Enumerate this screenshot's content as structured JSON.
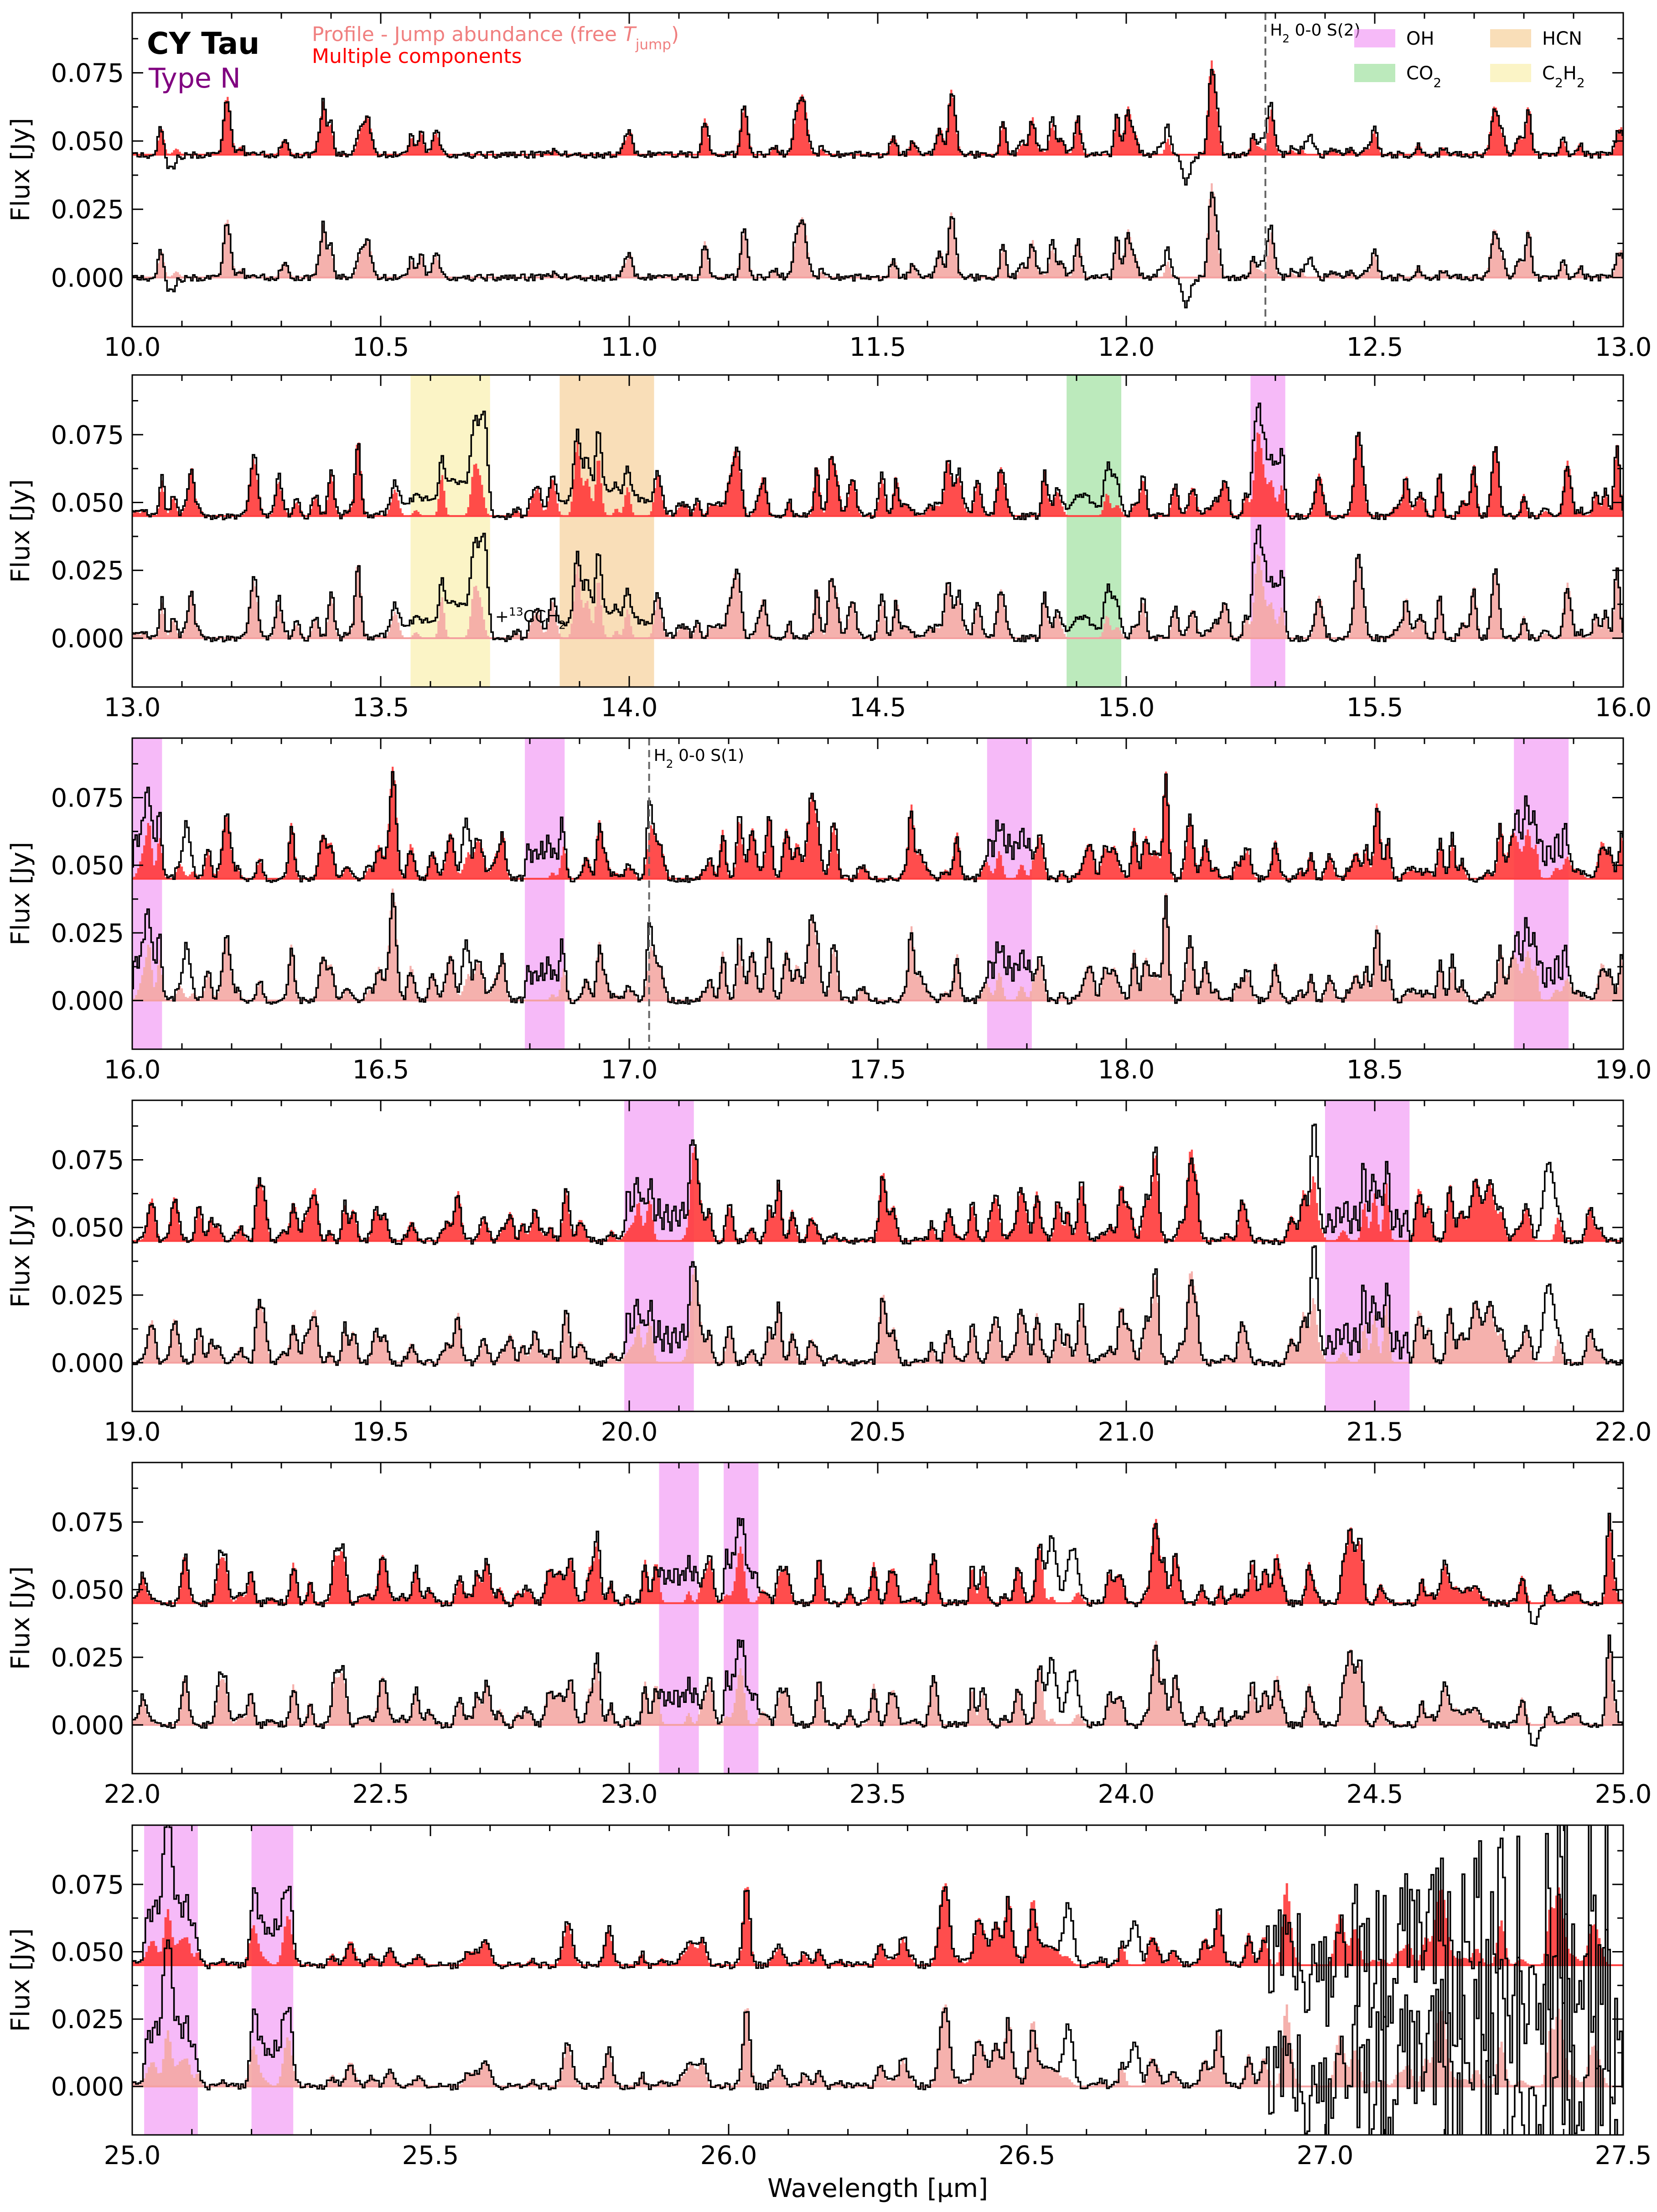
{
  "header": {
    "object_name": "CY Tau",
    "type_label": "Type N",
    "profile_label_prefix": "Profile - Jump abundance (free ",
    "profile_label_symbol": "T",
    "profile_label_subscript": "jump",
    "profile_label_suffix": ")",
    "multi_label": "Multiple components"
  },
  "colors": {
    "observed": "#000000",
    "model_top": "#ff2020",
    "model_top_fill": "#ff3a3a",
    "model_bottom": "#f08080",
    "model_bottom_fill": "#f4a8a4",
    "baseline_top": "#ff4040",
    "baseline_bottom": "#f4a0a0",
    "OH": "#f08cf4",
    "CO2": "#8fdc8f",
    "HCN": "#f5c889",
    "C2H2": "#f8eca0",
    "h2_marker": "#666666",
    "type_text": "#800080",
    "profile_text": "#f08080",
    "multi_text": "#ff0000"
  },
  "legend": {
    "placement": "top-right of first panel",
    "items": [
      {
        "key": "OH",
        "parts": [
          [
            "OH",
            null
          ]
        ]
      },
      {
        "key": "HCN",
        "parts": [
          [
            "HCN",
            null
          ]
        ]
      },
      {
        "key": "CO2",
        "parts": [
          [
            "CO",
            null
          ],
          [
            "2",
            "sub"
          ]
        ]
      },
      {
        "key": "C2H2",
        "parts": [
          [
            "C",
            null
          ],
          [
            "2",
            "sub"
          ],
          [
            "H",
            null
          ],
          [
            "2",
            "sub"
          ]
        ]
      }
    ]
  },
  "chart_data": [
    {
      "type": "line",
      "xlim": [
        10.0,
        13.0
      ],
      "ylim": [
        -0.018,
        0.097
      ],
      "ylabel": "Flux [Jy]",
      "xlabel": "",
      "xticks": [
        "10.0",
        "10.5",
        "11.0",
        "11.5",
        "12.0",
        "12.5",
        "13.0"
      ],
      "yticks": [
        "0.000",
        "0.025",
        "0.050",
        "0.075"
      ],
      "offset_levels": [
        0.045,
        0.0
      ],
      "line_density": 0.35,
      "seed": 11,
      "bands": [],
      "h2_lines": [
        {
          "x": 12.28,
          "text_parts": [
            [
              "H",
              null
            ],
            [
              "2",
              "sub"
            ],
            [
              " 0-0 S(2)",
              null
            ]
          ]
        }
      ],
      "annotations": [],
      "features": [
        {
          "x": 10.08,
          "a": -0.006,
          "w": 0.01
        },
        {
          "x": 12.08,
          "a": 0.004,
          "w": 0.012
        },
        {
          "x": 12.12,
          "a": -0.01,
          "w": 0.008
        },
        {
          "x": 12.28,
          "a": 0.006,
          "w": 0.008
        },
        {
          "x": 12.37,
          "a": 0.007,
          "w": 0.008
        }
      ]
    },
    {
      "type": "line",
      "xlim": [
        13.0,
        16.0
      ],
      "ylim": [
        -0.018,
        0.097
      ],
      "ylabel": "Flux [Jy]",
      "xlabel": "",
      "xticks": [
        "13.0",
        "13.5",
        "14.0",
        "14.5",
        "15.0",
        "15.5",
        "16.0"
      ],
      "yticks": [
        "0.000",
        "0.025",
        "0.050",
        "0.075"
      ],
      "offset_levels": [
        0.045,
        0.0
      ],
      "line_density": 0.8,
      "seed": 13,
      "bands": [
        {
          "species": "C2H2",
          "x0": 13.56,
          "x1": 13.72
        },
        {
          "species": "HCN",
          "x0": 13.86,
          "x1": 14.05
        },
        {
          "species": "CO2",
          "x0": 14.88,
          "x1": 14.99
        },
        {
          "species": "OH",
          "x0": 15.25,
          "x1": 15.32
        }
      ],
      "h2_lines": [],
      "annotations": [
        {
          "x": 13.73,
          "y": 0.006,
          "text_parts": [
            [
              "+",
              null
            ],
            [
              "13",
              "sup"
            ],
            [
              "CCH",
              null
            ],
            [
              "2",
              "sub"
            ]
          ]
        }
      ],
      "features": [
        {
          "x": 13.55,
          "a": 0.003,
          "w": 0.03
        },
        {
          "x": 13.6,
          "a": 0.005,
          "w": 0.03
        },
        {
          "x": 13.65,
          "a": 0.012,
          "w": 0.02
        },
        {
          "x": 13.69,
          "a": 0.016,
          "w": 0.012
        },
        {
          "x": 13.71,
          "a": 0.028,
          "w": 0.006
        },
        {
          "x": 13.88,
          "a": 0.005,
          "w": 0.03
        },
        {
          "x": 13.95,
          "a": 0.009,
          "w": 0.03
        },
        {
          "x": 14.02,
          "a": 0.006,
          "w": 0.03
        },
        {
          "x": 14.91,
          "a": 0.008,
          "w": 0.02
        },
        {
          "x": 14.97,
          "a": 0.012,
          "w": 0.012
        }
      ]
    },
    {
      "type": "line",
      "xlim": [
        16.0,
        19.0
      ],
      "ylim": [
        -0.018,
        0.097
      ],
      "ylabel": "Flux [Jy]",
      "xlabel": "",
      "xticks": [
        "16.0",
        "16.5",
        "17.0",
        "17.5",
        "18.0",
        "18.5",
        "19.0"
      ],
      "yticks": [
        "0.000",
        "0.025",
        "0.050",
        "0.075"
      ],
      "offset_levels": [
        0.045,
        0.0
      ],
      "line_density": 1.0,
      "seed": 17,
      "bands": [
        {
          "species": "OH",
          "x0": 16.0,
          "x1": 16.06
        },
        {
          "species": "OH",
          "x0": 16.79,
          "x1": 16.87
        },
        {
          "species": "OH",
          "x0": 17.72,
          "x1": 17.81
        },
        {
          "species": "OH",
          "x0": 18.78,
          "x1": 18.89
        }
      ],
      "h2_lines": [
        {
          "x": 17.04,
          "text_parts": [
            [
              "H",
              null
            ],
            [
              "2",
              "sub"
            ],
            [
              " 0-0 S(1)",
              null
            ]
          ]
        }
      ],
      "annotations": [],
      "features": [
        {
          "x": 16.11,
          "a": 0.02,
          "w": 0.006
        },
        {
          "x": 16.67,
          "a": 0.014,
          "w": 0.006
        },
        {
          "x": 17.04,
          "a": 0.012,
          "w": 0.005
        }
      ]
    },
    {
      "type": "line",
      "xlim": [
        19.0,
        22.0
      ],
      "ylim": [
        -0.018,
        0.097
      ],
      "ylabel": "Flux [Jy]",
      "xlabel": "",
      "xticks": [
        "19.0",
        "19.5",
        "20.0",
        "20.5",
        "21.0",
        "21.5",
        "22.0"
      ],
      "yticks": [
        "0.000",
        "0.025",
        "0.050",
        "0.075"
      ],
      "offset_levels": [
        0.045,
        0.0
      ],
      "line_density": 0.9,
      "seed": 19,
      "bands": [
        {
          "species": "OH",
          "x0": 19.99,
          "x1": 20.13
        },
        {
          "species": "OH",
          "x0": 21.4,
          "x1": 21.57
        }
      ],
      "h2_lines": [],
      "annotations": [],
      "features": [
        {
          "x": 21.38,
          "a": 0.018,
          "w": 0.008
        },
        {
          "x": 21.85,
          "a": 0.03,
          "w": 0.01
        }
      ]
    },
    {
      "type": "line",
      "xlim": [
        22.0,
        25.0
      ],
      "ylim": [
        -0.018,
        0.097
      ],
      "ylabel": "Flux [Jy]",
      "xlabel": "",
      "xticks": [
        "22.0",
        "22.5",
        "23.0",
        "23.5",
        "24.0",
        "24.5",
        "25.0"
      ],
      "yticks": [
        "0.000",
        "0.025",
        "0.050",
        "0.075"
      ],
      "offset_levels": [
        0.045,
        0.0
      ],
      "line_density": 0.75,
      "seed": 23,
      "bands": [
        {
          "species": "OH",
          "x0": 23.06,
          "x1": 23.14
        },
        {
          "species": "OH",
          "x0": 23.19,
          "x1": 23.26
        }
      ],
      "h2_lines": [],
      "annotations": [],
      "features": [
        {
          "x": 23.85,
          "a": 0.022,
          "w": 0.01
        },
        {
          "x": 23.89,
          "a": 0.02,
          "w": 0.01
        },
        {
          "x": 24.82,
          "a": -0.008,
          "w": 0.008
        }
      ]
    },
    {
      "type": "line",
      "xlim": [
        25.0,
        27.5
      ],
      "ylim": [
        -0.018,
        0.097
      ],
      "ylabel": "Flux [Jy]",
      "xlabel": "Wavelength [µm]",
      "xticks": [
        "25.0",
        "25.5",
        "26.0",
        "26.5",
        "27.0",
        "27.5"
      ],
      "yticks": [
        "0.000",
        "0.025",
        "0.050",
        "0.075"
      ],
      "offset_levels": [
        0.045,
        0.0
      ],
      "line_density": 0.8,
      "seed": 29,
      "bands": [
        {
          "species": "OH",
          "x0": 25.02,
          "x1": 25.11
        },
        {
          "species": "OH",
          "x0": 25.2,
          "x1": 25.27
        }
      ],
      "h2_lines": [],
      "annotations": [],
      "noisy_after": 26.9,
      "features": [
        {
          "x": 25.06,
          "a": 0.028,
          "w": 0.008
        },
        {
          "x": 26.57,
          "a": 0.02,
          "w": 0.008
        },
        {
          "x": 26.68,
          "a": 0.016,
          "w": 0.008
        }
      ]
    }
  ]
}
